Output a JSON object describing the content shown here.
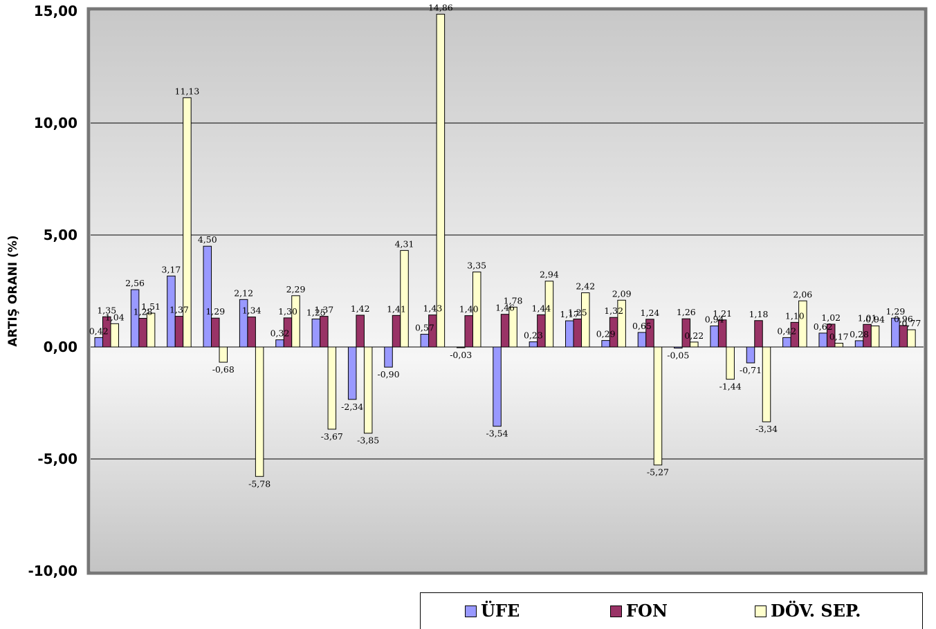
{
  "chart_data": {
    "type": "bar",
    "ylabel": "ARTIŞ ORANI (%)",
    "ylim": [
      -10,
      15
    ],
    "yticks": [
      15,
      10,
      5,
      0,
      -5,
      -10
    ],
    "ytick_labels": [
      "15,00",
      "10,00",
      "5,00",
      "0,00",
      "-5,00",
      "-10,00"
    ],
    "grid": true,
    "legend_position": "bottom-right",
    "series": [
      {
        "name": "ÜFE",
        "color": "#9999ff",
        "values": [
          0.42,
          2.56,
          3.17,
          4.5,
          2.12,
          0.32,
          1.25,
          -2.34,
          -0.9,
          0.57,
          -0.03,
          -3.54,
          0.23,
          1.17,
          0.29,
          0.65,
          -0.05,
          0.94,
          -0.71,
          0.42,
          0.62,
          0.28,
          1.29
        ],
        "labels": [
          "0,42",
          "2,56",
          "3,17",
          "4,50",
          "2,12",
          "0,32",
          "1,25",
          "-2,34",
          "-0,90",
          "0,57",
          "-0,03",
          "-3,54",
          "0,23",
          "1,17",
          "0,29",
          "0,65",
          "-0,05",
          "0,94",
          "-0,71",
          "0,42",
          "0,62",
          "0,28",
          "1,29"
        ]
      },
      {
        "name": "FON",
        "color": "#993366",
        "values": [
          1.35,
          1.28,
          1.37,
          1.29,
          1.34,
          1.3,
          1.37,
          1.42,
          1.41,
          1.43,
          1.4,
          1.46,
          1.44,
          1.25,
          1.32,
          1.24,
          1.26,
          1.21,
          1.18,
          1.1,
          1.02,
          1.01,
          0.96
        ],
        "labels": [
          "1,35",
          "1,28",
          "1,37",
          "1,29",
          "1,34",
          "1,30",
          "1,37",
          "1,42",
          "1,41",
          "1,43",
          "1,40",
          "1,46",
          "1,44",
          "1,25",
          "1,32",
          "1,24",
          "1,26",
          "1,21",
          "1,18",
          "1,10",
          "1,02",
          "1,01",
          "0,96"
        ]
      },
      {
        "name": "DÖV. SEP.",
        "color": "#ffffcc",
        "values": [
          1.04,
          1.51,
          11.13,
          -0.68,
          -5.78,
          2.29,
          -3.67,
          -3.85,
          4.31,
          14.86,
          3.35,
          1.78,
          2.94,
          2.42,
          2.09,
          -5.27,
          0.22,
          -1.44,
          -3.34,
          2.06,
          0.17,
          0.94,
          0.77
        ],
        "labels": [
          "1,04",
          "1,51",
          "11,13",
          "-0,68",
          "-5,78",
          "2,29",
          "-3,67",
          "-3,85",
          "4,31",
          "14,86",
          "3,35",
          "1,78",
          "2,94",
          "2,42",
          "2,09",
          "-5,27",
          "0,22",
          "-1,44",
          "-3,34",
          "2,06",
          "0,17",
          "0,94",
          "0,77"
        ]
      }
    ]
  }
}
